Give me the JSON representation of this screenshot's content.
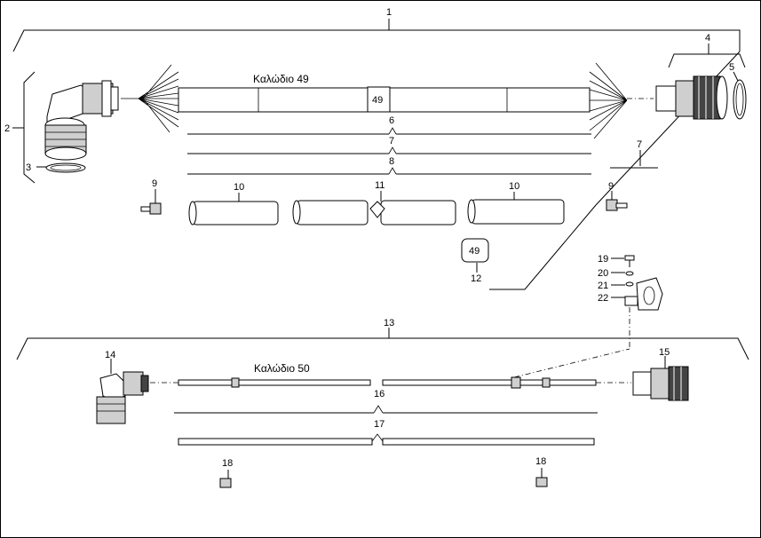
{
  "labels": {
    "l1": "1",
    "l2": "2",
    "l3": "3",
    "l4": "4",
    "l5": "5",
    "l6": "6",
    "l7a": "7",
    "l7b": "7",
    "l8": "8",
    "l9a": "9",
    "l9b": "9",
    "l10a": "10",
    "l10b": "10",
    "l11": "11",
    "l12": "12",
    "l13": "13",
    "l14": "14",
    "l15": "15",
    "l16": "16",
    "l17": "17",
    "l18a": "18",
    "l18b": "18",
    "l19": "19",
    "l20": "20",
    "l21": "21",
    "l22": "22"
  },
  "cables": {
    "cable49": "Καλώδιο 49",
    "cable50": "Καλώδιο 50"
  },
  "tags": {
    "tag_main": "49",
    "tag_part12": "49"
  }
}
